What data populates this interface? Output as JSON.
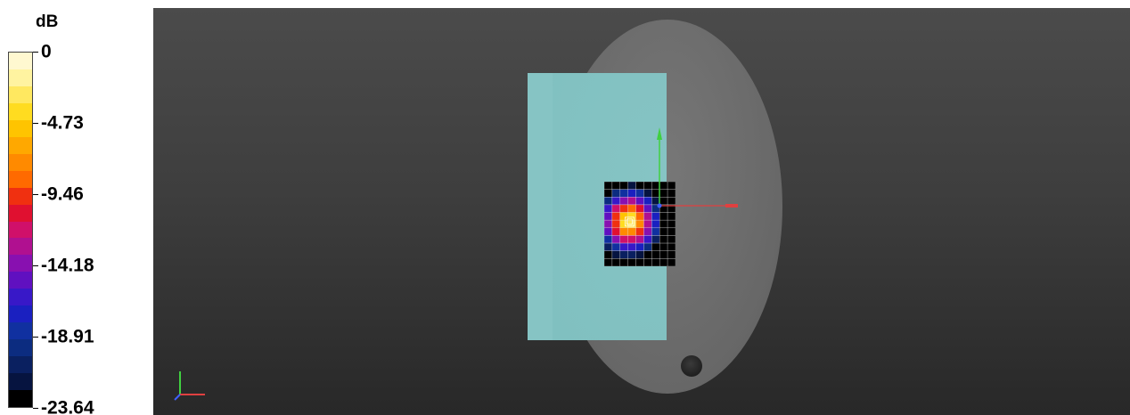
{
  "legend": {
    "unit": "dB",
    "labels": [
      "0",
      "-4.73",
      "-9.46",
      "-14.18",
      "-18.91",
      "-23.64"
    ],
    "colors": [
      "#fff8d0",
      "#fff3a0",
      "#ffe860",
      "#ffdc20",
      "#ffc400",
      "#ffa800",
      "#ff8a00",
      "#ff6a00",
      "#f03010",
      "#e01030",
      "#d0106a",
      "#b01090",
      "#8810b0",
      "#6010c0",
      "#3818c8",
      "#1a20c0",
      "#1030a0",
      "#0c2c80",
      "#0a2060",
      "#061440",
      "#000000"
    ]
  },
  "viewport": {
    "colors": {
      "background_top": "#4b4b4b",
      "background_bottom": "#282828",
      "phantom": "#6e6e6e",
      "device": "#86c4c4",
      "axis_x": "#e04040",
      "axis_y": "#40d040",
      "axis_z": "#4060ff"
    },
    "scan_grid": {
      "columns": 9,
      "rows": 11,
      "peak_column": 3.2,
      "peak_row": 5.2
    }
  }
}
